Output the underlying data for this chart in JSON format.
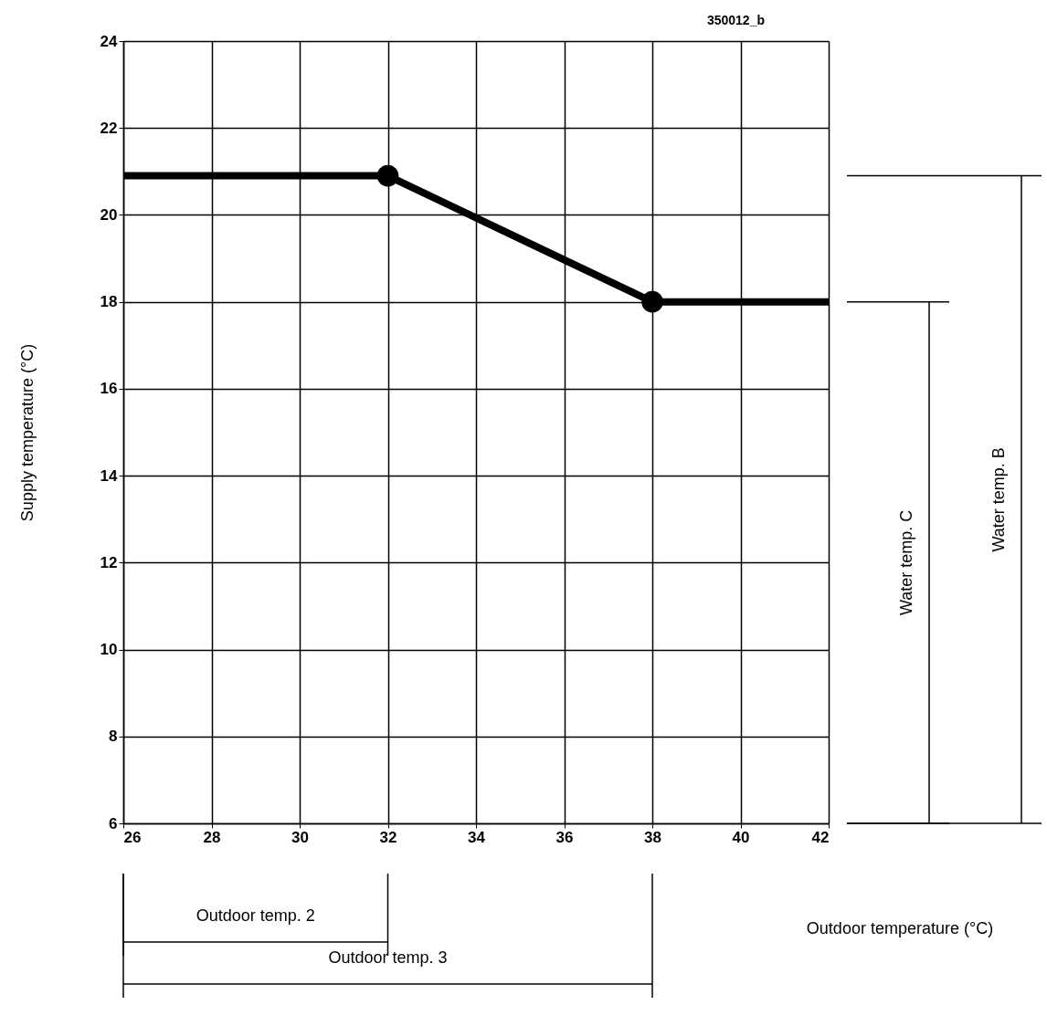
{
  "chart_data": {
    "type": "line",
    "xlabel": "Outdoor temperature (°C)",
    "ylabel": "Supply temperature (°C)",
    "xlim": [
      26,
      42
    ],
    "ylim": [
      6,
      24
    ],
    "xticks": [
      26,
      28,
      30,
      32,
      34,
      36,
      38,
      40,
      42
    ],
    "yticks": [
      6,
      8,
      10,
      12,
      14,
      16,
      18,
      20,
      22,
      24
    ],
    "grid": true,
    "series": [
      {
        "x": [
          26,
          32,
          38,
          42
        ],
        "values": [
          20.9,
          20.9,
          18,
          18
        ],
        "color": "#000000"
      },
      {
        "type": "scatter",
        "x": [
          32,
          38
        ],
        "values": [
          20.9,
          18
        ],
        "color": "#000000"
      }
    ],
    "annotations": [
      "350012_b",
      "Outdoor temp. 2",
      "Outdoor temp. 3",
      "Water temp. C",
      "Water temp. B"
    ]
  }
}
